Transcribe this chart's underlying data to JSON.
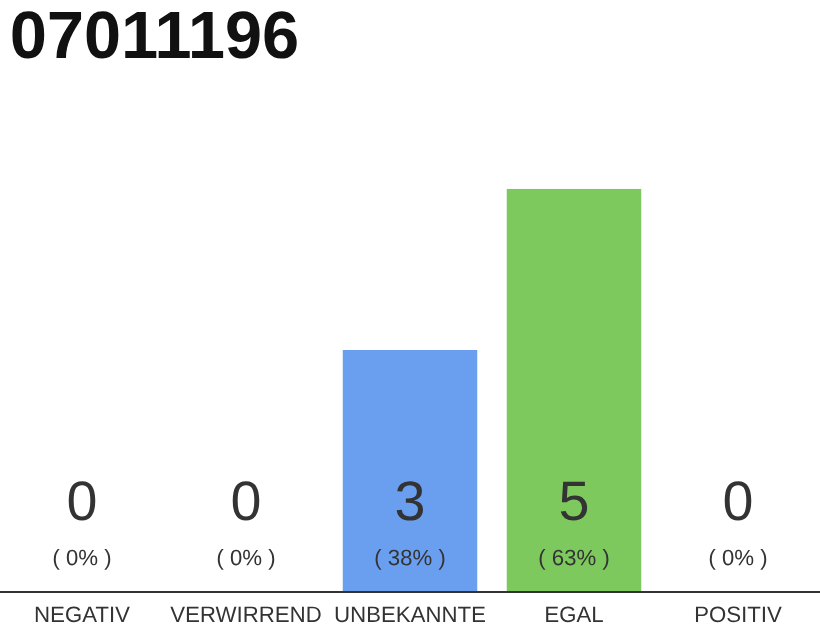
{
  "chart_data": {
    "type": "bar",
    "title": "07011196",
    "categories": [
      "NEGATIV",
      "VERWIRREND",
      "UNBEKANNTE",
      "EGAL",
      "POSITIV"
    ],
    "series": [
      {
        "colors": [
          "#6a9ff0",
          "#6a9ff0",
          "#6a9ff0",
          "#7dc95e",
          "#7dc95e"
        ],
        "values": [
          0,
          0,
          3,
          5,
          0
        ],
        "data_labels": true
      }
    ],
    "annotations": [
      {
        "text": "( 0% )",
        "x": "NEGATIV",
        "y": 0
      },
      {
        "text": "( 0% )",
        "x": "VERWIRREND",
        "y": 0
      },
      {
        "text": "( 38% )",
        "x": "UNBEKANNTE",
        "y": 0
      },
      {
        "text": "( 63% )",
        "x": "EGAL",
        "y": 0
      },
      {
        "text": "( 0% )",
        "x": "POSITIV",
        "y": 0
      }
    ],
    "grid": false,
    "legend": false,
    "tick_labels": "x"
  }
}
